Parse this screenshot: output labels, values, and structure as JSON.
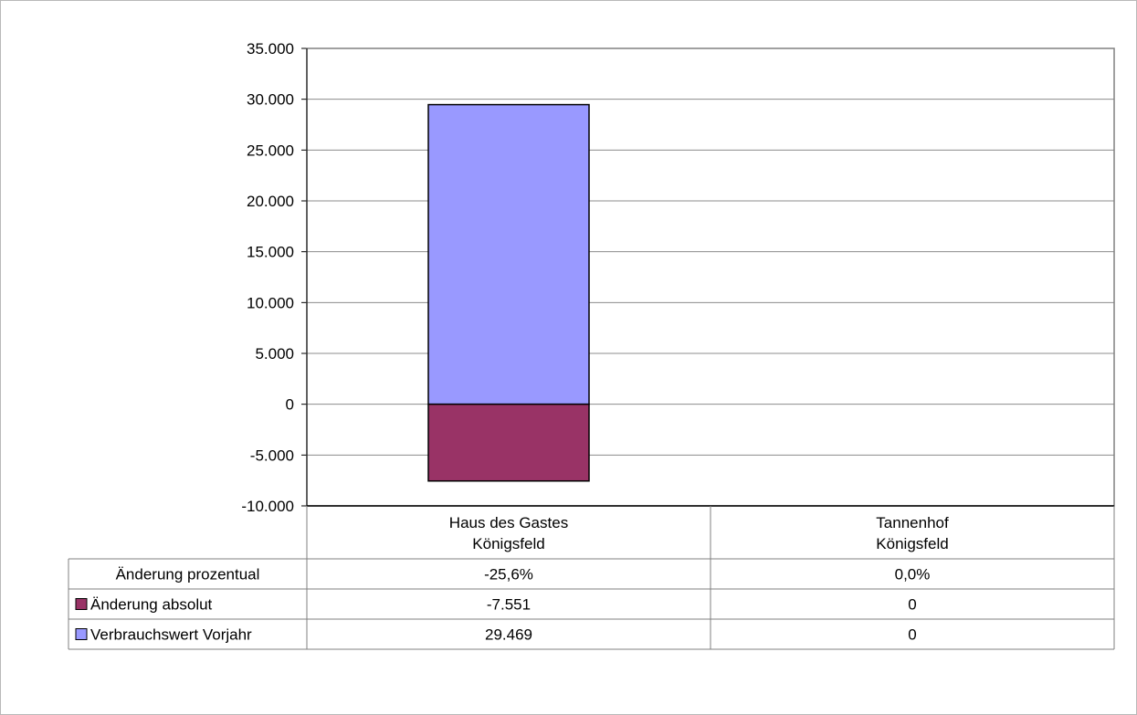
{
  "chart_data": {
    "type": "bar",
    "stacked": true,
    "title": "",
    "xlabel": "",
    "ylabel": "",
    "ylim": [
      -10000,
      35000
    ],
    "yticks": [
      35000,
      30000,
      25000,
      20000,
      15000,
      10000,
      5000,
      0,
      -5000,
      -10000
    ],
    "ytick_labels": [
      "35.000",
      "30.000",
      "25.000",
      "20.000",
      "15.000",
      "10.000",
      "5.000",
      "0",
      "-5.000",
      "-10.000"
    ],
    "grid": true,
    "categories": [
      [
        "Haus des Gastes",
        "Königsfeld"
      ],
      [
        "Tannenhof",
        "Königsfeld"
      ]
    ],
    "series": [
      {
        "name": "Verbrauchswert Vorjahr",
        "color": "#9999ff",
        "values": [
          29469,
          0
        ],
        "labels": [
          "29.469",
          "0"
        ]
      },
      {
        "name": "Änderung absolut",
        "color": "#993366",
        "values": [
          -7551,
          0
        ],
        "labels": [
          "-7.551",
          "0"
        ]
      }
    ],
    "table_rows": [
      {
        "label": "Änderung prozentual",
        "values": [
          "-25,6%",
          "0,0%"
        ],
        "swatch": null
      },
      {
        "label": "Änderung absolut",
        "values": [
          "-7.551",
          "0"
        ],
        "swatch": "#993366"
      },
      {
        "label": "Verbrauchswert Vorjahr",
        "values": [
          "29.469",
          "0"
        ],
        "swatch": "#9999ff"
      }
    ]
  }
}
